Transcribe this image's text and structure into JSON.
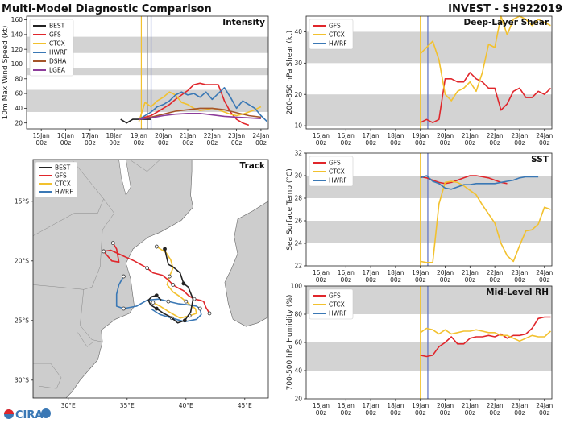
{
  "header": {
    "left_title": "Multi-Model Diagnostic Comparison",
    "right_title": "INVEST - SH922019"
  },
  "logo": {
    "text": "CIRA"
  },
  "colors": {
    "BEST": "#222222",
    "GFS": "#e0262b",
    "CTCX": "#f2c12e",
    "HWRF": "#3a78b5",
    "DSHA": "#a5552a",
    "LGEA": "#8d3d9b",
    "band": "#d3d3d3",
    "water": "#ffffff",
    "land": "#cdcdcd",
    "init_line_yellow": "#f2c12e",
    "init_line_gray": "#8a8a8a",
    "init_line_blue": "#5b6fc4"
  },
  "time_labels": [
    {
      "day": "15Jan",
      "hour": "00z"
    },
    {
      "day": "16Jan",
      "hour": "00z"
    },
    {
      "day": "17Jan",
      "hour": "00z"
    },
    {
      "day": "18Jan",
      "hour": "00z"
    },
    {
      "day": "19Jan",
      "hour": "00z"
    },
    {
      "day": "20Jan",
      "hour": "00z"
    },
    {
      "day": "21Jan",
      "hour": "00z"
    },
    {
      "day": "22Jan",
      "hour": "00z"
    },
    {
      "day": "23Jan",
      "hour": "00z"
    },
    {
      "day": "24Jan",
      "hour": "00z"
    }
  ],
  "chart_data": [
    {
      "id": "intensity",
      "type": "line",
      "title": "Intensity",
      "ylabel": "10m Max Wind Speed (kt)",
      "xlim": [
        -0.6,
        9.3
      ],
      "ylim": [
        12,
        165
      ],
      "yticks": [
        20,
        40,
        60,
        80,
        100,
        120,
        140,
        160
      ],
      "bands": [
        [
          35,
          65
        ],
        [
          85,
          95
        ],
        [
          115,
          137
        ]
      ],
      "init_lines": [
        4.1,
        4.35,
        4.5
      ],
      "legend": [
        "BEST",
        "GFS",
        "CTCX",
        "HWRF",
        "DSHA",
        "LGEA"
      ],
      "series": [
        {
          "name": "BEST",
          "x": [
            3.25,
            3.5,
            3.75,
            4.0,
            4.25,
            4.5
          ],
          "y": [
            25,
            20,
            25,
            25,
            25,
            25
          ]
        },
        {
          "name": "GFS",
          "x": [
            4.0,
            4.25,
            4.5,
            4.75,
            5.0,
            5.25,
            5.5,
            5.75,
            6.0,
            6.25,
            6.5,
            6.75,
            7.0,
            7.25,
            7.5,
            7.75,
            8.0,
            8.25,
            8.5
          ],
          "y": [
            25,
            28,
            30,
            35,
            40,
            45,
            52,
            58,
            64,
            72,
            74,
            72,
            72,
            72,
            50,
            35,
            25,
            20,
            17
          ]
        },
        {
          "name": "CTCX",
          "x": [
            4.0,
            4.25,
            4.5,
            4.75,
            5.0,
            5.25,
            5.5,
            5.75,
            6.0,
            6.25,
            6.5,
            6.75,
            7.0,
            7.25,
            7.5,
            7.75,
            8.0,
            8.25,
            8.5,
            8.75,
            9.0
          ],
          "y": [
            22,
            48,
            42,
            50,
            55,
            62,
            58,
            48,
            45,
            40,
            37,
            38,
            40,
            38,
            35,
            32,
            30,
            32,
            35,
            38,
            42
          ]
        },
        {
          "name": "HWRF",
          "x": [
            4.0,
            4.25,
            4.5,
            4.75,
            5.0,
            5.25,
            5.5,
            5.75,
            6.0,
            6.25,
            6.5,
            6.75,
            7.0,
            7.25,
            7.5,
            7.75,
            8.0,
            8.25,
            8.5,
            8.75,
            9.0,
            9.25
          ],
          "y": [
            25,
            30,
            35,
            42,
            45,
            50,
            58,
            62,
            58,
            60,
            55,
            62,
            52,
            60,
            68,
            55,
            40,
            50,
            45,
            40,
            30,
            22
          ]
        },
        {
          "name": "DSHA",
          "x": [
            4.0,
            4.5,
            5.0,
            5.5,
            6.0,
            6.5,
            7.0,
            7.5,
            8.0,
            8.5,
            9.0
          ],
          "y": [
            25,
            28,
            32,
            36,
            38,
            40,
            40,
            38,
            34,
            30,
            28
          ]
        },
        {
          "name": "LGEA",
          "x": [
            4.0,
            4.5,
            5.0,
            5.5,
            6.0,
            6.5,
            7.0,
            7.5,
            8.0,
            8.5,
            9.0
          ],
          "y": [
            25,
            27,
            30,
            32,
            33,
            33,
            31,
            29,
            28,
            27,
            26
          ]
        }
      ]
    },
    {
      "id": "shear",
      "type": "line",
      "title": "Deep-Layer Shear",
      "ylabel": "200-850 hPa Shear (kt)",
      "xlim": [
        -0.6,
        9.3
      ],
      "ylim": [
        9,
        45
      ],
      "yticks": [
        10,
        20,
        30,
        40
      ],
      "bands": [
        [
          10,
          20
        ],
        [
          30,
          40
        ]
      ],
      "init_lines": [
        4.0,
        4.3
      ],
      "legend": [
        "GFS",
        "CTCX",
        "HWRF"
      ],
      "series": [
        {
          "name": "GFS",
          "x": [
            4.0,
            4.25,
            4.5,
            4.75,
            5.0,
            5.25,
            5.5,
            5.75,
            6.0,
            6.25,
            6.5,
            6.75,
            7.0,
            7.25,
            7.5,
            7.75,
            8.0,
            8.25,
            8.5,
            8.75,
            9.0,
            9.25
          ],
          "y": [
            11,
            12,
            11,
            12,
            25,
            25,
            24,
            24,
            27,
            25,
            24,
            22,
            22,
            15,
            17,
            21,
            22,
            19,
            19,
            21,
            20,
            22
          ]
        },
        {
          "name": "CTCX",
          "x": [
            4.0,
            4.25,
            4.5,
            4.75,
            5.0,
            5.25,
            5.5,
            5.75,
            6.0,
            6.25,
            6.5,
            6.75,
            7.0,
            7.25,
            7.5,
            7.75,
            8.0,
            8.25,
            8.5,
            8.75,
            9.0,
            9.25
          ],
          "y": [
            33,
            35,
            37,
            31,
            20,
            18,
            21,
            22,
            24,
            21,
            27,
            36,
            35,
            45,
            39,
            44,
            45,
            44,
            42,
            44,
            43,
            42
          ]
        }
      ]
    },
    {
      "id": "sst",
      "type": "line",
      "title": "SST",
      "ylabel": "Sea Surface Temp (°C)",
      "xlim": [
        -0.6,
        9.3
      ],
      "ylim": [
        22,
        32
      ],
      "yticks": [
        22,
        24,
        26,
        28,
        30,
        32
      ],
      "bands": [
        [
          24,
          26
        ],
        [
          28,
          30
        ]
      ],
      "init_lines": [
        4.0,
        4.3
      ],
      "legend": [
        "GFS",
        "CTCX",
        "HWRF"
      ],
      "series": [
        {
          "name": "GFS",
          "x": [
            4.0,
            4.25,
            4.5,
            4.75,
            5.0,
            5.25,
            5.5,
            5.75,
            6.0,
            6.25,
            6.5,
            6.75,
            7.0,
            7.25,
            7.5
          ],
          "y": [
            29.9,
            29.8,
            29.6,
            29.4,
            29.3,
            29.4,
            29.6,
            29.8,
            30.0,
            30.0,
            29.9,
            29.8,
            29.6,
            29.4,
            29.3
          ]
        },
        {
          "name": "CTCX",
          "x": [
            4.0,
            4.25,
            4.5,
            4.75,
            5.0,
            5.25,
            5.5,
            5.75,
            6.0,
            6.25,
            6.5,
            6.75,
            7.0,
            7.25,
            7.5,
            7.75,
            8.0,
            8.25,
            8.5,
            8.75,
            9.0,
            9.25
          ],
          "y": [
            22.4,
            22.3,
            22.3,
            27.5,
            29.4,
            29.5,
            29.4,
            29.1,
            28.7,
            28.3,
            27.4,
            26.6,
            25.8,
            24.0,
            22.9,
            22.4,
            23.8,
            25.1,
            25.2,
            25.7,
            27.2,
            27.0
          ]
        },
        {
          "name": "HWRF",
          "x": [
            4.0,
            4.25,
            4.5,
            4.75,
            5.0,
            5.25,
            5.5,
            5.75,
            6.0,
            6.25,
            6.5,
            6.75,
            7.0,
            7.25,
            7.5,
            7.75,
            8.0,
            8.25,
            8.5,
            8.75
          ],
          "y": [
            29.8,
            30.0,
            29.5,
            29.3,
            28.9,
            28.8,
            29.0,
            29.2,
            29.2,
            29.3,
            29.3,
            29.3,
            29.3,
            29.4,
            29.5,
            29.6,
            29.8,
            29.9,
            29.9,
            29.9
          ]
        }
      ]
    },
    {
      "id": "rh",
      "type": "line",
      "title": "Mid-Level RH",
      "ylabel": "700-500 hPa Humidity (%)",
      "xlim": [
        -0.6,
        9.3
      ],
      "ylim": [
        20,
        100
      ],
      "yticks": [
        20,
        40,
        60,
        80,
        100
      ],
      "bands": [
        [
          40,
          60
        ],
        [
          80,
          100
        ]
      ],
      "init_lines": [
        4.0,
        4.3
      ],
      "legend": [
        "GFS",
        "CTCX",
        "HWRF"
      ],
      "series": [
        {
          "name": "GFS",
          "x": [
            4.0,
            4.25,
            4.5,
            4.75,
            5.0,
            5.25,
            5.5,
            5.75,
            6.0,
            6.25,
            6.5,
            6.75,
            7.0,
            7.25,
            7.5,
            7.75,
            8.0,
            8.25,
            8.5,
            8.75,
            9.0,
            9.25
          ],
          "y": [
            51,
            50,
            51,
            57,
            60,
            64,
            59,
            59,
            63,
            64,
            64,
            65,
            64,
            66,
            63,
            65,
            65,
            66,
            70,
            77,
            78,
            78
          ]
        },
        {
          "name": "CTCX",
          "x": [
            4.0,
            4.25,
            4.5,
            4.75,
            5.0,
            5.25,
            5.5,
            5.75,
            6.0,
            6.25,
            6.5,
            6.75,
            7.0,
            7.25,
            7.5,
            7.75,
            8.0,
            8.25,
            8.5,
            8.75,
            9.0,
            9.25
          ],
          "y": [
            67,
            70,
            69,
            66,
            69,
            66,
            67,
            68,
            68,
            69,
            68,
            67,
            67,
            65,
            65,
            63,
            61,
            63,
            65,
            64,
            64,
            68
          ]
        }
      ]
    },
    {
      "id": "track",
      "type": "scatter",
      "title": "Track",
      "legend": [
        "BEST",
        "GFS",
        "CTCX",
        "HWRF"
      ],
      "xlim": [
        27,
        47
      ],
      "ylim": [
        -31.5,
        -11.5
      ],
      "xticks": [
        {
          "v": 30,
          "label": "30°E"
        },
        {
          "v": 35,
          "label": "35°E"
        },
        {
          "v": 40,
          "label": "40°E"
        },
        {
          "v": 45,
          "label": "45°E"
        }
      ],
      "yticks": [
        {
          "v": -15,
          "label": "15°S"
        },
        {
          "v": -20,
          "label": "20°S"
        },
        {
          "v": -25,
          "label": "25°S"
        },
        {
          "v": -30,
          "label": "30°S"
        }
      ],
      "series": [
        {
          "name": "BEST",
          "lon": [
            38.2,
            38.5,
            38.9,
            39.5,
            39.8,
            40.2,
            40.6,
            40.4,
            39.9,
            39.3,
            38.7,
            38.1,
            37.5,
            37.0,
            36.8,
            37.1,
            37.5,
            37.9
          ],
          "lat": [
            -19.0,
            -20.3,
            -20.5,
            -21.0,
            -21.9,
            -22.2,
            -23.2,
            -24.3,
            -25.0,
            -25.2,
            -24.7,
            -24.4,
            -24.0,
            -23.7,
            -23.3,
            -23.0,
            -22.9,
            -23.3
          ]
        },
        {
          "name": "GFS",
          "lon": [
            33.8,
            34.1,
            34.3,
            33.7,
            33.0,
            33.6,
            34.7,
            35.6,
            36.7,
            37.2,
            38.0,
            38.5,
            38.9,
            39.2,
            39.8,
            40.2,
            40.7,
            41.2,
            41.5,
            41.7,
            42.0
          ],
          "lat": [
            -18.5,
            -19.0,
            -20.1,
            -20.0,
            -19.2,
            -19.1,
            -19.6,
            -20.0,
            -20.6,
            -21.0,
            -21.2,
            -21.6,
            -22.0,
            -22.2,
            -22.5,
            -22.9,
            -23.2,
            -23.3,
            -23.4,
            -23.9,
            -24.4
          ]
        },
        {
          "name": "CTCX",
          "lon": [
            37.5,
            38.3,
            38.7,
            38.9,
            38.6,
            38.4,
            38.9,
            39.5,
            40.0,
            40.5,
            40.8,
            40.9,
            40.3,
            39.5,
            38.6,
            37.8,
            37.2,
            37.0
          ],
          "lat": [
            -18.8,
            -19.3,
            -19.9,
            -20.6,
            -21.3,
            -22.0,
            -22.6,
            -23.0,
            -23.4,
            -23.8,
            -24.0,
            -24.4,
            -24.6,
            -24.8,
            -24.3,
            -23.8,
            -23.5,
            -23.4
          ]
        },
        {
          "name": "HWRF",
          "lon": [
            34.7,
            34.3,
            34.1,
            34.1,
            34.7,
            35.8,
            36.7,
            37.7,
            38.5,
            39.4,
            40.3,
            40.9,
            41.2,
            41.3,
            40.9,
            39.9,
            38.8,
            37.8,
            37.0
          ],
          "lat": [
            -21.3,
            -22.0,
            -22.8,
            -23.8,
            -24.0,
            -23.8,
            -23.3,
            -23.2,
            -23.4,
            -23.6,
            -23.7,
            -23.8,
            -24.0,
            -24.5,
            -24.9,
            -25.1,
            -24.8,
            -24.5,
            -24.0
          ]
        }
      ]
    }
  ]
}
